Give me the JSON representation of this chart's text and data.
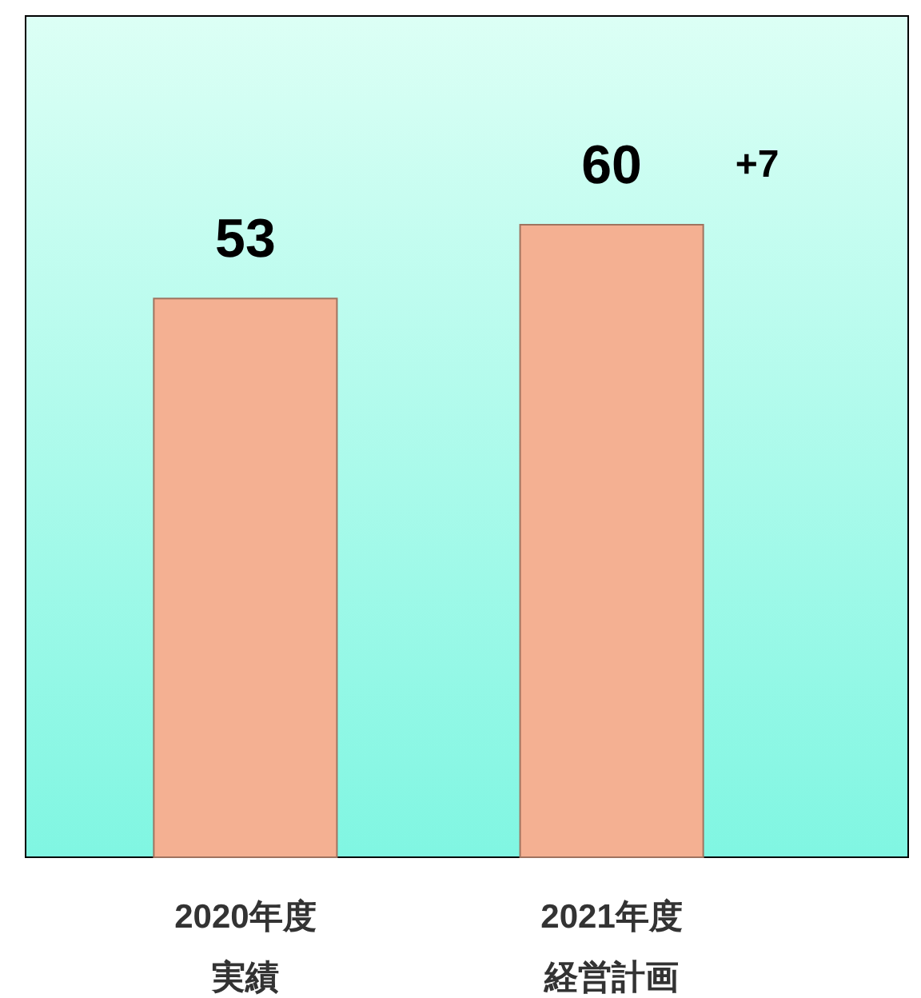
{
  "chart_data": {
    "type": "bar",
    "categories": [
      "2020年度実績",
      "2021年度経営計画"
    ],
    "values": [
      53,
      60
    ],
    "color": "#f4b092",
    "data_labels": true,
    "annotations": [
      "+7"
    ]
  }
}
